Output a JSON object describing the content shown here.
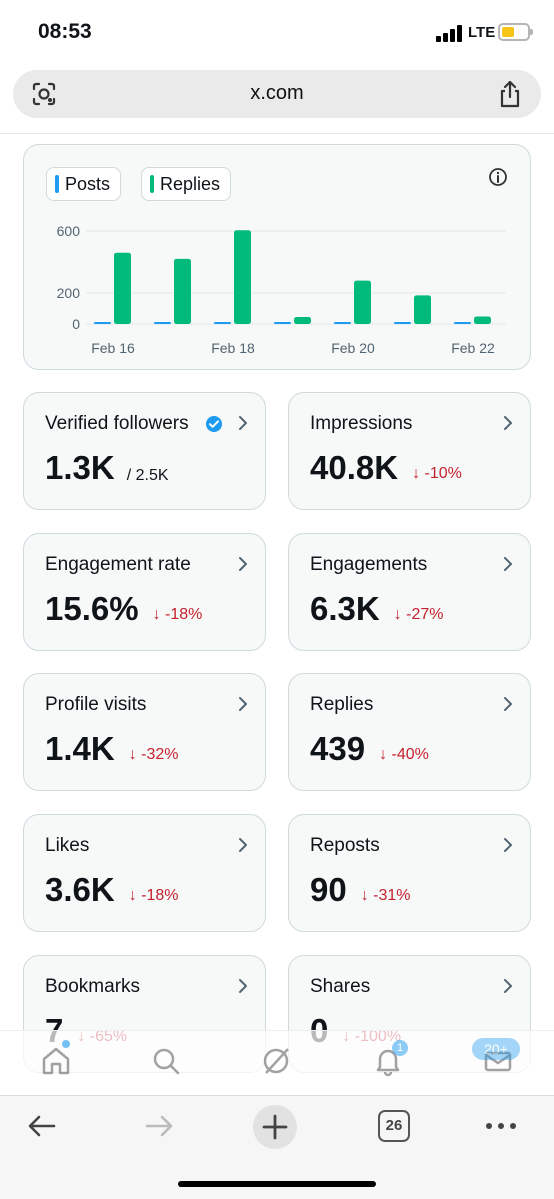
{
  "status": {
    "time": "08:53",
    "network": "LTE"
  },
  "browser": {
    "url": "x.com",
    "tabs_count": "26"
  },
  "chart_data": {
    "type": "bar",
    "categories": [
      "Feb 16",
      "Feb 17",
      "Feb 18",
      "Feb 19",
      "Feb 20",
      "Feb 21",
      "Feb 22"
    ],
    "tick_labels": [
      "Feb 16",
      "Feb 18",
      "Feb 20",
      "Feb 22"
    ],
    "y_ticks": [
      "600",
      "200",
      "0"
    ],
    "ylim": [
      0,
      650
    ],
    "series": [
      {
        "name": "Posts",
        "color": "#1d9bf0",
        "values": [
          6,
          10,
          8,
          1,
          4,
          3,
          1
        ]
      },
      {
        "name": "Replies",
        "color": "#00ba7c",
        "values": [
          460,
          420,
          605,
          45,
          280,
          185,
          48
        ]
      }
    ]
  },
  "metrics": [
    {
      "label": "Verified followers",
      "value": "1.3K",
      "sub": "/ 2.5K",
      "verified": true
    },
    {
      "label": "Impressions",
      "value": "40.8K",
      "delta": "↓ -10%"
    },
    {
      "label": "Engagement rate",
      "value": "15.6%",
      "delta": "↓ -18%"
    },
    {
      "label": "Engagements",
      "value": "6.3K",
      "delta": "↓ -27%"
    },
    {
      "label": "Profile visits",
      "value": "1.4K",
      "delta": "↓ -32%"
    },
    {
      "label": "Replies",
      "value": "439",
      "delta": "↓ -40%"
    },
    {
      "label": "Likes",
      "value": "3.6K",
      "delta": "↓ -18%"
    },
    {
      "label": "Reposts",
      "value": "90",
      "delta": "↓ -31%"
    },
    {
      "label": "Bookmarks",
      "value": "7",
      "delta": "↓ -65%"
    },
    {
      "label": "Shares",
      "value": "0",
      "delta": "↓ -100%"
    }
  ],
  "tab_badges": {
    "notifications": "1",
    "messages": "20+"
  }
}
